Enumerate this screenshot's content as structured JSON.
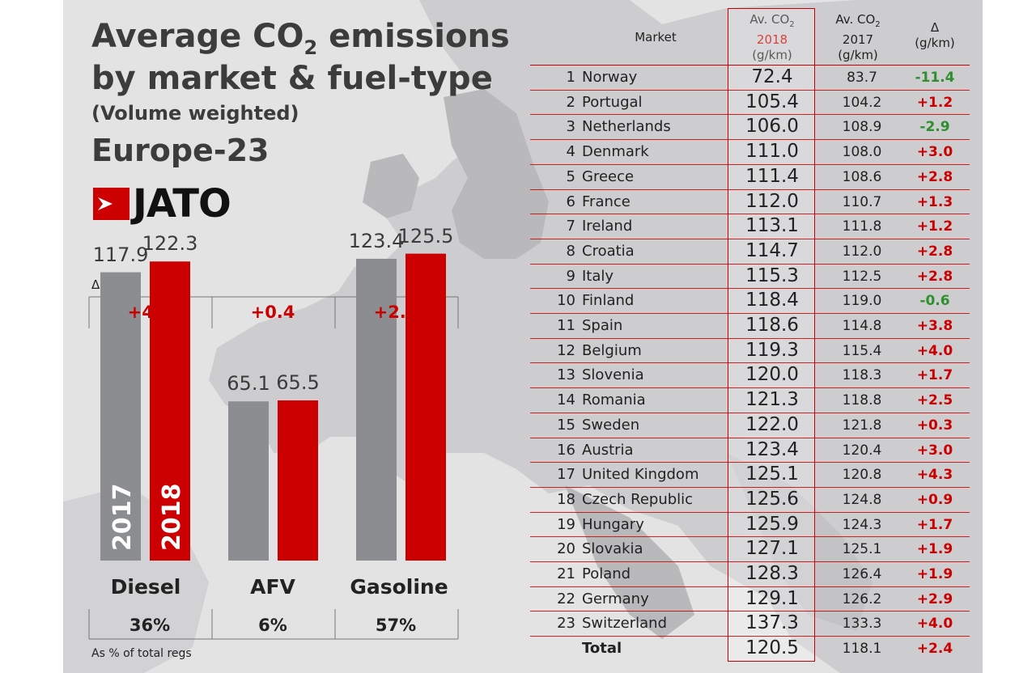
{
  "header": {
    "title_line1_a": "Average CO",
    "title_line1_sub": "2",
    "title_line1_b": " emissions",
    "title_line2": "by market & fuel-type",
    "subtitle": "(Volume weighted)",
    "region": "Europe-23",
    "logo_text": "JATO"
  },
  "chart_data": [
    {
      "type": "bar",
      "categories": [
        "Diesel",
        "AFV",
        "Gasoline"
      ],
      "series": [
        {
          "name": "2017",
          "values": [
            117.9,
            65.1,
            123.4
          ]
        },
        {
          "name": "2018",
          "values": [
            122.3,
            65.5,
            125.5
          ]
        }
      ],
      "deltas": [
        "+4.4",
        "+0.4",
        "+2.1"
      ],
      "delta_label": "Δ g/km",
      "shares": [
        "36%",
        "6%",
        "57%"
      ],
      "share_label": "As % of total regs",
      "colors": {
        "2017": "#8c8d90",
        "2018": "#cc0000"
      },
      "ylim": [
        0,
        130
      ]
    },
    {
      "type": "table",
      "headers": {
        "market": "Market",
        "av2018_a": "Av. CO",
        "av2018_sub": "2",
        "av2018_year": "2018",
        "av2018_unit": "(g/km)",
        "av2017_a": "Av. CO",
        "av2017_sub": "2",
        "av2017_year": "2017",
        "av2017_unit": "(g/km)",
        "delta": "Δ",
        "delta_unit": "(g/km)"
      },
      "rows": [
        {
          "rank": "1",
          "market": "Norway",
          "v2018": "72.4",
          "v2017": "83.7",
          "delta": "-11.4"
        },
        {
          "rank": "2",
          "market": "Portugal",
          "v2018": "105.4",
          "v2017": "104.2",
          "delta": "+1.2"
        },
        {
          "rank": "3",
          "market": "Netherlands",
          "v2018": "106.0",
          "v2017": "108.9",
          "delta": "-2.9"
        },
        {
          "rank": "4",
          "market": "Denmark",
          "v2018": "111.0",
          "v2017": "108.0",
          "delta": "+3.0"
        },
        {
          "rank": "5",
          "market": "Greece",
          "v2018": "111.4",
          "v2017": "108.6",
          "delta": "+2.8"
        },
        {
          "rank": "6",
          "market": "France",
          "v2018": "112.0",
          "v2017": "110.7",
          "delta": "+1.3"
        },
        {
          "rank": "7",
          "market": "Ireland",
          "v2018": "113.1",
          "v2017": "111.8",
          "delta": "+1.2"
        },
        {
          "rank": "8",
          "market": "Croatia",
          "v2018": "114.7",
          "v2017": "112.0",
          "delta": "+2.8"
        },
        {
          "rank": "9",
          "market": "Italy",
          "v2018": "115.3",
          "v2017": "112.5",
          "delta": "+2.8"
        },
        {
          "rank": "10",
          "market": "Finland",
          "v2018": "118.4",
          "v2017": "119.0",
          "delta": "-0.6"
        },
        {
          "rank": "11",
          "market": "Spain",
          "v2018": "118.6",
          "v2017": "114.8",
          "delta": "+3.8"
        },
        {
          "rank": "12",
          "market": "Belgium",
          "v2018": "119.3",
          "v2017": "115.4",
          "delta": "+4.0"
        },
        {
          "rank": "13",
          "market": "Slovenia",
          "v2018": "120.0",
          "v2017": "118.3",
          "delta": "+1.7"
        },
        {
          "rank": "14",
          "market": "Romania",
          "v2018": "121.3",
          "v2017": "118.8",
          "delta": "+2.5"
        },
        {
          "rank": "15",
          "market": "Sweden",
          "v2018": "122.0",
          "v2017": "121.8",
          "delta": "+0.3"
        },
        {
          "rank": "16",
          "market": "Austria",
          "v2018": "123.4",
          "v2017": "120.4",
          "delta": "+3.0"
        },
        {
          "rank": "17",
          "market": "United Kingdom",
          "v2018": "125.1",
          "v2017": "120.8",
          "delta": "+4.3"
        },
        {
          "rank": "18",
          "market": "Czech Republic",
          "v2018": "125.6",
          "v2017": "124.8",
          "delta": "+0.9"
        },
        {
          "rank": "19",
          "market": "Hungary",
          "v2018": "125.9",
          "v2017": "124.3",
          "delta": "+1.7"
        },
        {
          "rank": "20",
          "market": "Slovakia",
          "v2018": "127.1",
          "v2017": "125.1",
          "delta": "+1.9"
        },
        {
          "rank": "21",
          "market": "Poland",
          "v2018": "128.3",
          "v2017": "126.4",
          "delta": "+1.9"
        },
        {
          "rank": "22",
          "market": "Germany",
          "v2018": "129.1",
          "v2017": "126.2",
          "delta": "+2.9"
        },
        {
          "rank": "23",
          "market": "Switzerland",
          "v2018": "137.3",
          "v2017": "133.3",
          "delta": "+4.0"
        },
        {
          "rank": "",
          "market": "Total",
          "v2018": "120.5",
          "v2017": "118.1",
          "delta": "+2.4"
        }
      ],
      "colors": {
        "positive": "#cc0000",
        "negative": "#2f8f2f",
        "highlight": "#cc0000"
      }
    }
  ]
}
